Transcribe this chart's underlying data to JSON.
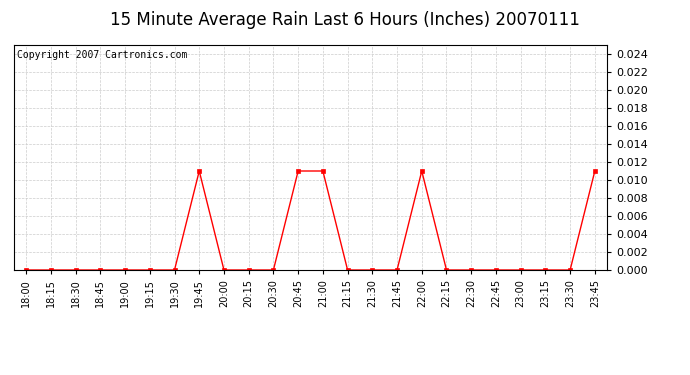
{
  "title": "15 Minute Average Rain Last 6 Hours (Inches) 20070111",
  "copyright": "Copyright 2007 Cartronics.com",
  "x_labels": [
    "18:00",
    "18:15",
    "18:30",
    "18:45",
    "19:00",
    "19:15",
    "19:30",
    "19:45",
    "20:00",
    "20:15",
    "20:30",
    "20:45",
    "21:00",
    "21:15",
    "21:30",
    "21:45",
    "22:00",
    "22:15",
    "22:30",
    "22:45",
    "23:00",
    "23:15",
    "23:30",
    "23:45"
  ],
  "y_values": [
    0.0,
    0.0,
    0.0,
    0.0,
    0.0,
    0.0,
    0.0,
    0.011,
    0.0,
    0.0,
    0.0,
    0.011,
    0.011,
    0.0,
    0.0,
    0.0,
    0.011,
    0.0,
    0.0,
    0.0,
    0.0,
    0.0,
    0.0,
    0.011
  ],
  "line_color": "#ff0000",
  "marker": "s",
  "marker_size": 2.5,
  "ylim": [
    0.0,
    0.025
  ],
  "yticks": [
    0.0,
    0.002,
    0.004,
    0.006,
    0.008,
    0.01,
    0.012,
    0.014,
    0.016,
    0.018,
    0.02,
    0.022,
    0.024
  ],
  "background_color": "#ffffff",
  "grid_color": "#cccccc",
  "title_fontsize": 12,
  "copyright_fontsize": 7,
  "tick_fontsize": 7,
  "ytick_fontsize": 8,
  "outer_bg": "#ffffff",
  "border_color": "#000000"
}
